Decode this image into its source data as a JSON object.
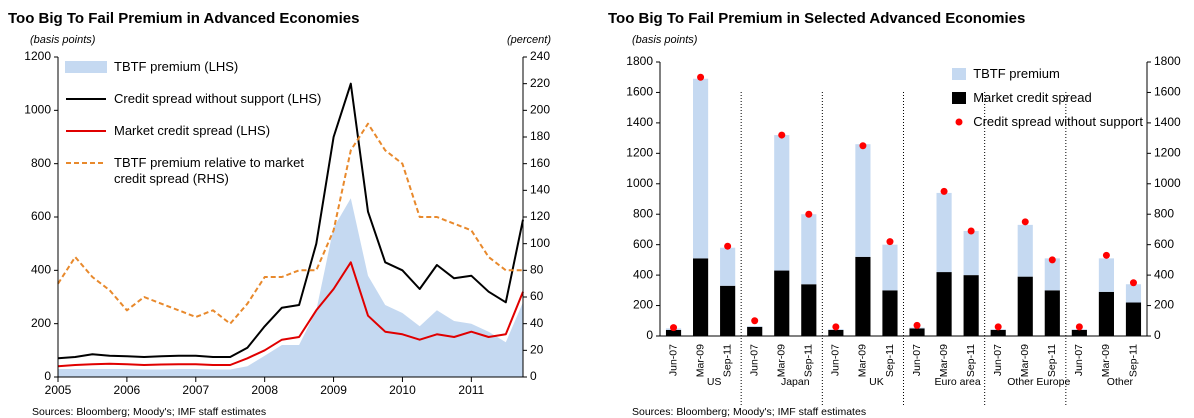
{
  "chart_data": [
    {
      "type": "line",
      "title": "Too Big To Fail Premium in Advanced Economies",
      "y_label": "(basis points)",
      "y2_label": "(percent)",
      "note": "Sources: Bloomberg; Moody's; IMF staff estimates",
      "x": [
        2005,
        2005.25,
        2005.5,
        2005.75,
        2006,
        2006.25,
        2006.5,
        2006.75,
        2007,
        2007.25,
        2007.5,
        2007.75,
        2008,
        2008.25,
        2008.5,
        2008.75,
        2009,
        2009.25,
        2009.5,
        2009.75,
        2010,
        2010.25,
        2010.5,
        2010.75,
        2011,
        2011.25,
        2011.5,
        2011.75
      ],
      "xlim": [
        2005,
        2011.75
      ],
      "xticks": [
        2005,
        2006,
        2007,
        2008,
        2009,
        2010,
        2011
      ],
      "ylim": [
        0,
        1200
      ],
      "yticks": [
        0,
        200,
        400,
        600,
        800,
        1000,
        1200
      ],
      "y2lim": [
        0,
        240
      ],
      "y2ticks": [
        0,
        20,
        40,
        60,
        80,
        100,
        120,
        140,
        160,
        180,
        200,
        220,
        240
      ],
      "legend": "upper left",
      "series": [
        {
          "name": "TBTF premium (LHS)",
          "color": "#c5d9f1",
          "style": "area",
          "values": [
            30,
            30,
            30,
            30,
            30,
            28,
            28,
            30,
            30,
            28,
            28,
            40,
            80,
            120,
            120,
            250,
            560,
            670,
            380,
            270,
            240,
            190,
            250,
            210,
            200,
            170,
            130,
            280
          ]
        },
        {
          "name": "Credit spread without support (LHS)",
          "color": "#000000",
          "style": "solid",
          "values": [
            70,
            75,
            85,
            80,
            78,
            75,
            78,
            80,
            80,
            75,
            75,
            110,
            190,
            260,
            270,
            500,
            900,
            1100,
            620,
            430,
            400,
            330,
            420,
            370,
            380,
            320,
            280,
            590
          ]
        },
        {
          "name": "Market credit spread (LHS)",
          "color": "#e00000",
          "style": "solid",
          "values": [
            40,
            45,
            48,
            50,
            48,
            45,
            47,
            48,
            48,
            45,
            45,
            70,
            100,
            140,
            150,
            250,
            330,
            430,
            230,
            170,
            160,
            140,
            160,
            150,
            170,
            150,
            160,
            320
          ]
        },
        {
          "name": "TBTF premium relative to market credit spread (RHS)",
          "color": "#e8892c",
          "style": "dashed",
          "axis": "y2",
          "values": [
            70,
            90,
            75,
            65,
            50,
            60,
            55,
            50,
            45,
            50,
            40,
            55,
            75,
            75,
            80,
            80,
            110,
            170,
            190,
            170,
            160,
            120,
            120,
            115,
            110,
            90,
            80,
            80
          ]
        }
      ]
    },
    {
      "type": "bar",
      "title": "Too Big To Fail Premium in Selected Advanced Economies",
      "y_label": "(basis points)",
      "note": "Sources: Bloomberg; Moody's; IMF staff estimates",
      "categories": [
        "Jun-07",
        "Mar-09",
        "Sep-11",
        "Jun-07",
        "Mar-09",
        "Sep-11",
        "Jun-07",
        "Mar-09",
        "Sep-11",
        "Jun-07",
        "Mar-09",
        "Sep-11",
        "Jun-07",
        "Mar-09",
        "Sep-11",
        "Jun-07",
        "Mar-09",
        "Sep-11"
      ],
      "groups": [
        "US",
        "Japan",
        "UK",
        "Euro area",
        "Other Europe",
        "Other"
      ],
      "ylim": [
        0,
        1800
      ],
      "yticks": [
        0,
        200,
        400,
        600,
        800,
        1000,
        1200,
        1400,
        1600,
        1800
      ],
      "y2lim": [
        0,
        1800
      ],
      "y2ticks": [
        0,
        200,
        400,
        600,
        800,
        1000,
        1200,
        1400,
        1600,
        1800
      ],
      "legend": "upper right",
      "series": [
        {
          "name": "TBTF premium",
          "color": "#c5d9f1",
          "style": "bar",
          "values": [
            10,
            1180,
            250,
            5,
            890,
            460,
            5,
            740,
            300,
            5,
            520,
            290,
            5,
            340,
            210,
            5,
            220,
            120
          ]
        },
        {
          "name": "Market credit spread",
          "color": "#000000",
          "style": "bar",
          "values": [
            40,
            510,
            330,
            60,
            430,
            340,
            40,
            520,
            300,
            50,
            420,
            400,
            40,
            390,
            300,
            40,
            290,
            220
          ]
        },
        {
          "name": "Credit spread without support",
          "color": "#ff0000",
          "style": "dot",
          "values": [
            55,
            1700,
            590,
            100,
            1320,
            800,
            60,
            1250,
            620,
            70,
            950,
            690,
            60,
            750,
            500,
            60,
            530,
            350
          ]
        }
      ]
    }
  ]
}
